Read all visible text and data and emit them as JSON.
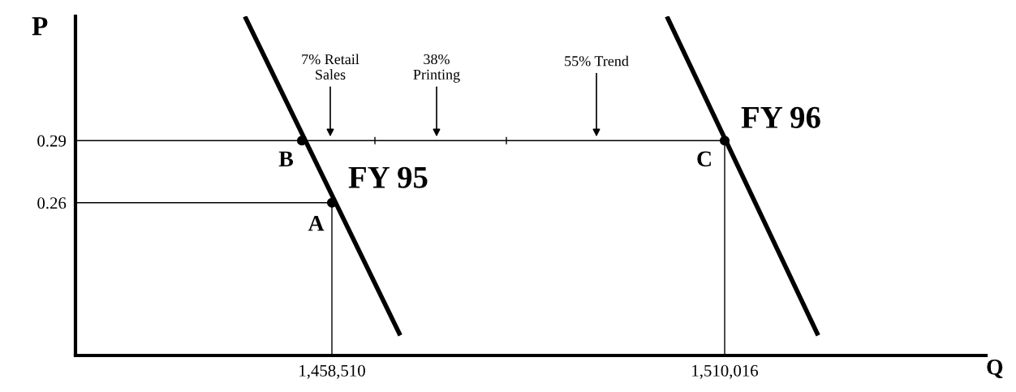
{
  "chart_data": {
    "type": "line",
    "xlabel": "Q",
    "ylabel": "P",
    "xlim": [
      1424881,
      1544284
    ],
    "ylim": [
      0.1863,
      0.35
    ],
    "xticks": [
      {
        "value": 1458510,
        "label": "1,458,510"
      },
      {
        "value": 1510016,
        "label": "1,510,016"
      }
    ],
    "yticks": [
      0.26,
      0.29
    ],
    "series": [
      {
        "color": "#000000",
        "x": [
          1447230,
          1467343
        ],
        "values": [
          0.3489,
          0.197
        ]
      },
      {
        "color": "#000000",
        "x": [
          1502567,
          1522148
        ],
        "values": [
          0.3489,
          0.197
        ]
      },
      {
        "color": "#000000",
        "x": [
          1424881,
          1510016,
          1510016
        ],
        "values": [
          0.29,
          0.29,
          0.1863
        ]
      },
      {
        "color": "#000000",
        "x": [
          1424881,
          1458510,
          1458510
        ],
        "values": [
          0.26,
          0.26,
          0.1863
        ]
      },
      {
        "color": "#000000",
        "x": [
          1464150,
          1464150
        ],
        "values": [
          0.2885,
          0.2915
        ]
      },
      {
        "color": "#000000",
        "x": [
          1481390,
          1481390
        ],
        "values": [
          0.2885,
          0.2915
        ]
      },
      {
        "type": "scatter",
        "color": "#000000",
        "marker": "circle",
        "x": [
          1454572,
          1458510,
          1510016
        ],
        "values": [
          0.29,
          0.26,
          0.29
        ]
      }
    ],
    "annotations": [
      {
        "text": "7% Retail\nSales",
        "x": 1458297,
        "y": 0.2919
      },
      {
        "text": "38%\nPrinting",
        "x": 1472238,
        "y": 0.2919
      },
      {
        "text": "55% Trend",
        "x": 1493203,
        "y": 0.2919
      },
      {
        "text": "B",
        "x": 1454572,
        "y": 0.29
      },
      {
        "text": "A",
        "x": 1458510,
        "y": 0.26
      },
      {
        "text": "C",
        "x": 1510016,
        "y": 0.29
      },
      {
        "text": "FY 95",
        "x": 1458510,
        "y": 0.26
      },
      {
        "text": "FY 96",
        "x": 1510016,
        "y": 0.29
      }
    ],
    "grid": false,
    "legend": false
  }
}
